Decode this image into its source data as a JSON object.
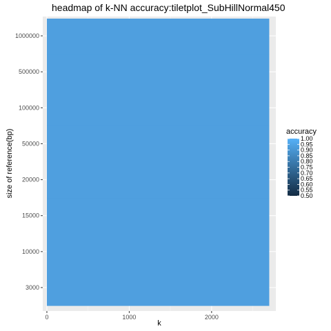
{
  "chart_data": {
    "type": "heatmap",
    "title": "headmap of k-NN accuracy:tiletplot_SubHillNormal450",
    "xlabel": "k",
    "ylabel": "size of reference(bp)",
    "x_ticks": [
      0,
      1000,
      2000
    ],
    "xlim": [
      -50,
      2780
    ],
    "y_categories": [
      "3000",
      "10000",
      "15000",
      "20000",
      "50000",
      "100000",
      "500000",
      "1000000"
    ],
    "grid": true,
    "legend": {
      "title": "accuracy",
      "position": "right",
      "ticks": [
        "1.00",
        "0.95",
        "0.90",
        "0.85",
        "0.80",
        "0.75",
        "0.70",
        "0.65",
        "0.60",
        "0.55",
        "0.50"
      ],
      "range": [
        0.5,
        1.0
      ],
      "low_color": "#132b43",
      "high_color": "#56b1f7"
    },
    "tiles": {
      "x_start": 0,
      "x_end": 2700,
      "accuracy": 0.96,
      "fill_color": "#4f9fdf"
    }
  }
}
